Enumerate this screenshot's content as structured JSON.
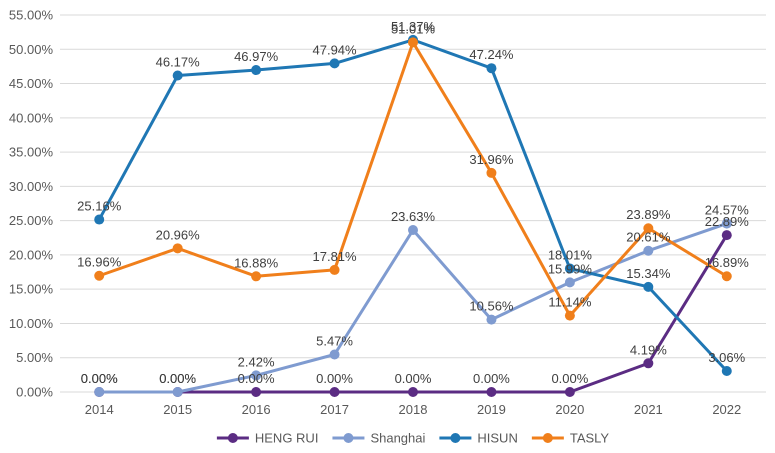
{
  "chart_data": {
    "type": "line",
    "title": "",
    "xlabel": "",
    "ylabel": "",
    "categories": [
      "2014",
      "2015",
      "2016",
      "2017",
      "2018",
      "2019",
      "2020",
      "2021",
      "2022"
    ],
    "ylim": [
      0,
      55
    ],
    "yticks": [
      "0.00%",
      "5.00%",
      "10.00%",
      "15.00%",
      "20.00%",
      "25.00%",
      "30.00%",
      "35.00%",
      "40.00%",
      "45.00%",
      "50.00%",
      "55.00%"
    ],
    "ytick_values": [
      0,
      5,
      10,
      15,
      20,
      25,
      30,
      35,
      40,
      45,
      50,
      55
    ],
    "grid": true,
    "legend_position": "bottom-center",
    "series": [
      {
        "name": "HENG RUI",
        "color": "#5B2C83",
        "values": [
          0,
          0,
          0,
          0,
          0,
          0,
          0,
          4.19,
          22.89
        ],
        "labels": [
          "0.00%",
          "0.00%",
          "0.00%",
          "0.00%",
          "0.00%",
          "0.00%",
          "0.00%",
          "4.19%",
          "22.89%"
        ]
      },
      {
        "name": "Shanghai",
        "color": "#7F9BD0",
        "values": [
          0,
          0,
          2.42,
          5.47,
          23.63,
          10.56,
          15.99,
          20.61,
          24.57
        ],
        "labels": [
          "0.00%",
          "0.00%",
          "2.42%",
          "5.47%",
          "23.63%",
          "10.56%",
          "15.99%",
          "20.61%",
          "24.57%"
        ]
      },
      {
        "name": "HISUN",
        "color": "#1F77B4",
        "values": [
          25.16,
          46.17,
          46.97,
          47.94,
          51.37,
          47.24,
          18.01,
          15.34,
          3.06
        ],
        "labels": [
          "25.16%",
          "46.17%",
          "46.97%",
          "47.94%",
          "51.37%",
          "47.24%",
          "18.01%",
          "15.34%",
          "3.06%"
        ]
      },
      {
        "name": "TASLY",
        "color": "#F07F1B",
        "values": [
          16.96,
          20.96,
          16.88,
          17.81,
          51.01,
          31.96,
          11.14,
          23.89,
          16.89
        ],
        "labels": [
          "16.96%",
          "20.96%",
          "16.88%",
          "17.81%",
          "51.01%",
          "31.96%",
          "11.14%",
          "23.89%",
          "16.89%"
        ]
      }
    ]
  }
}
